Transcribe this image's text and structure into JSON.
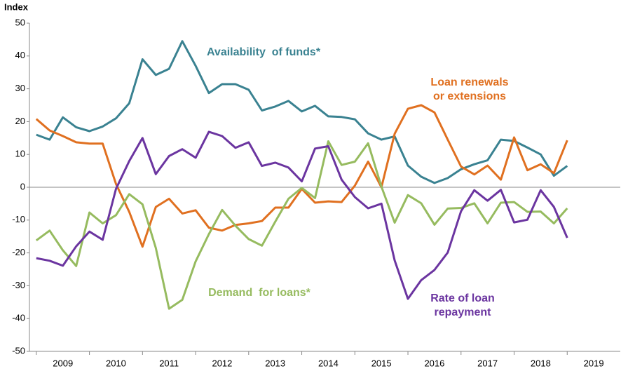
{
  "chart_data": {
    "type": "line",
    "y_axis_label": "Index",
    "x": [
      2009,
      2009.25,
      2009.5,
      2009.75,
      2010,
      2010.25,
      2010.5,
      2010.75,
      2011,
      2011.25,
      2011.5,
      2011.75,
      2012,
      2012.25,
      2012.5,
      2012.75,
      2013,
      2013.25,
      2013.5,
      2013.75,
      2014,
      2014.25,
      2014.5,
      2014.75,
      2015,
      2015.25,
      2015.5,
      2015.75,
      2016,
      2016.25,
      2016.5,
      2016.75,
      2017,
      2017.25,
      2017.5,
      2017.75,
      2018,
      2018.25,
      2018.5,
      2018.75,
      2019
    ],
    "xlim": [
      2008.87,
      2020
    ],
    "xticks": [
      {
        "value": 2009.5,
        "label": "2009"
      },
      {
        "value": 2010.5,
        "label": "2010"
      },
      {
        "value": 2011.5,
        "label": "2011"
      },
      {
        "value": 2012.5,
        "label": "2012"
      },
      {
        "value": 2013.5,
        "label": "2013"
      },
      {
        "value": 2014.5,
        "label": "2014"
      },
      {
        "value": 2015.5,
        "label": "2015"
      },
      {
        "value": 2016.5,
        "label": "2016"
      },
      {
        "value": 2017.5,
        "label": "2017"
      },
      {
        "value": 2018.5,
        "label": "2018"
      },
      {
        "value": 2019.5,
        "label": "2019"
      }
    ],
    "ylim": [
      -50,
      50
    ],
    "yticks": [
      -50,
      -40,
      -30,
      -20,
      -10,
      0,
      10,
      20,
      30,
      40,
      50
    ],
    "series": [
      {
        "name": [
          "Availability  of funds*"
        ],
        "color": "#3a8291",
        "values": [
          16,
          14.5,
          21.3,
          18.3,
          17.1,
          18.5,
          21,
          25.6,
          39,
          34.2,
          36.1,
          44.5,
          37,
          28.7,
          31.4,
          31.4,
          29.7,
          23.4,
          24.6,
          26.3,
          23.1,
          24.8,
          21.6,
          21.4,
          20.7,
          16.4,
          14.5,
          15.5,
          6.6,
          3.2,
          1.3,
          2.8,
          5.5,
          7,
          8.2,
          14.5,
          14.1,
          12.1,
          10,
          3.5,
          6.5
        ]
      },
      {
        "name": [
          "Loan renewals",
          "or extensions"
        ],
        "color": "#e07020",
        "values": [
          20.8,
          17.3,
          15.6,
          13.7,
          13.3,
          13.3,
          1,
          -7.5,
          -18.1,
          -6,
          -3.5,
          -8,
          -7,
          -12.3,
          -13.2,
          -11.5,
          -11,
          -10.3,
          -6.2,
          -6.2,
          -0.5,
          -4.7,
          -4.3,
          -4.5,
          0.5,
          7.8,
          0,
          16.3,
          23.9,
          25,
          22.8,
          14.5,
          6.3,
          3.9,
          6.6,
          2.3,
          15.2,
          5.2,
          7,
          4.3,
          14.3
        ]
      },
      {
        "name": [
          "Demand  for loans*"
        ],
        "color": "#96bb5f",
        "values": [
          -16.2,
          -13.2,
          -19.2,
          -24,
          -7.7,
          -11,
          -8.5,
          -2.1,
          -5.2,
          -18.5,
          -37,
          -34.3,
          -22.6,
          -14.3,
          -6.9,
          -11.7,
          -15.8,
          -17.8,
          -10.5,
          -3.5,
          -0.2,
          -3.3,
          14,
          6.8,
          7.8,
          13.4,
          0.2,
          -10.8,
          -2.4,
          -4.9,
          -11.4,
          -6.5,
          -6.3,
          -4.9,
          -11,
          -4.7,
          -4.5,
          -7.5,
          -7.4,
          -11,
          -6.4
        ]
      },
      {
        "name": [
          "Rate of loan",
          "repayment"
        ],
        "color": "#6b35a0",
        "values": [
          -21.6,
          -22.4,
          -23.9,
          -18,
          -13.5,
          -16,
          -0.5,
          8,
          15,
          4,
          9.5,
          11.6,
          9,
          16.9,
          15.6,
          12,
          13.7,
          6.5,
          7.5,
          6,
          1.8,
          11.8,
          12.5,
          2.3,
          -3,
          -6.4,
          -5,
          -22.3,
          -34,
          -28.3,
          -25.2,
          -19.9,
          -7.3,
          -0.9,
          -4.1,
          -0.8,
          -10.7,
          -9.9,
          -0.9,
          -6,
          -15.4
        ]
      }
    ]
  }
}
